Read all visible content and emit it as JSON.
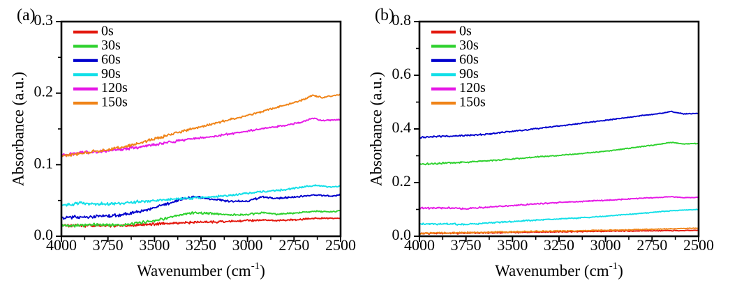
{
  "figure": {
    "background": "#ffffff"
  },
  "chart_data": [
    {
      "type": "line",
      "panel_label": "(a)",
      "ylabel": "Absorbance (a.u.)",
      "xlabel_base": "Wavenumber (cm",
      "xlabel_sup": "-1",
      "xlabel_end": ")",
      "x_axis": {
        "min": 2500,
        "max": 4000,
        "reversed": true,
        "major_ticks": [
          4000,
          3750,
          3500,
          3250,
          3000,
          2750,
          2500
        ],
        "tick_labels": [
          "4000",
          "3750",
          "3500",
          "3250",
          "3000",
          "2750",
          "2500"
        ],
        "minor_ticks": [
          3875,
          3625,
          3375,
          3125,
          2875,
          2625
        ],
        "grid": false
      },
      "y_axis": {
        "min": 0.0,
        "max": 0.3,
        "major_ticks": [
          0.0,
          0.1,
          0.2,
          0.3
        ],
        "tick_labels": [
          "0.0",
          "0.1",
          "0.2",
          "0.3"
        ],
        "minor_ticks": [
          0.05,
          0.15,
          0.25
        ],
        "grid": false
      },
      "legend": {
        "position": "top-left",
        "entries": [
          {
            "label": "0s",
            "color": "#e3170d"
          },
          {
            "label": "30s",
            "color": "#2ed12e"
          },
          {
            "label": "60s",
            "color": "#0000cd"
          },
          {
            "label": "90s",
            "color": "#12dfe8"
          },
          {
            "label": "120s",
            "color": "#e619e6"
          },
          {
            "label": "150s",
            "color": "#f08418"
          }
        ]
      },
      "series": [
        {
          "name": "0s",
          "color": "#e3170d",
          "points": [
            [
              4000,
              0.015
            ],
            [
              3800,
              0.015
            ],
            [
              3650,
              0.015
            ],
            [
              3500,
              0.017
            ],
            [
              3350,
              0.019
            ],
            [
              3200,
              0.02
            ],
            [
              3050,
              0.021
            ],
            [
              2920,
              0.023
            ],
            [
              2850,
              0.022
            ],
            [
              2750,
              0.023
            ],
            [
              2650,
              0.025
            ],
            [
              2500,
              0.025
            ]
          ]
        },
        {
          "name": "30s",
          "color": "#2ed12e",
          "points": [
            [
              4000,
              0.015
            ],
            [
              3800,
              0.016
            ],
            [
              3650,
              0.016
            ],
            [
              3500,
              0.022
            ],
            [
              3400,
              0.027
            ],
            [
              3300,
              0.033
            ],
            [
              3200,
              0.032
            ],
            [
              3100,
              0.03
            ],
            [
              3000,
              0.03
            ],
            [
              2920,
              0.033
            ],
            [
              2850,
              0.031
            ],
            [
              2750,
              0.032
            ],
            [
              2650,
              0.035
            ],
            [
              2550,
              0.034
            ],
            [
              2500,
              0.036
            ]
          ]
        },
        {
          "name": "60s",
          "color": "#0000cd",
          "points": [
            [
              4000,
              0.026
            ],
            [
              3900,
              0.027
            ],
            [
              3800,
              0.028
            ],
            [
              3700,
              0.029
            ],
            [
              3650,
              0.031
            ],
            [
              3550,
              0.036
            ],
            [
              3450,
              0.044
            ],
            [
              3350,
              0.052
            ],
            [
              3280,
              0.055
            ],
            [
              3200,
              0.052
            ],
            [
              3100,
              0.049
            ],
            [
              3000,
              0.049
            ],
            [
              2920,
              0.055
            ],
            [
              2850,
              0.053
            ],
            [
              2780,
              0.054
            ],
            [
              2700,
              0.056
            ],
            [
              2650,
              0.058
            ],
            [
              2550,
              0.056
            ],
            [
              2500,
              0.058
            ]
          ]
        },
        {
          "name": "90s",
          "color": "#12dfe8",
          "points": [
            [
              4000,
              0.043
            ],
            [
              3900,
              0.046
            ],
            [
              3800,
              0.045
            ],
            [
              3700,
              0.046
            ],
            [
              3600,
              0.048
            ],
            [
              3500,
              0.05
            ],
            [
              3400,
              0.052
            ],
            [
              3300,
              0.053
            ],
            [
              3200,
              0.055
            ],
            [
              3100,
              0.057
            ],
            [
              3000,
              0.06
            ],
            [
              2900,
              0.063
            ],
            [
              2800,
              0.065
            ],
            [
              2700,
              0.069
            ],
            [
              2650,
              0.071
            ],
            [
              2550,
              0.069
            ],
            [
              2500,
              0.07
            ]
          ]
        },
        {
          "name": "120s",
          "color": "#e619e6",
          "points": [
            [
              4000,
              0.113
            ],
            [
              3900,
              0.117
            ],
            [
              3800,
              0.118
            ],
            [
              3700,
              0.121
            ],
            [
              3600,
              0.124
            ],
            [
              3500,
              0.128
            ],
            [
              3400,
              0.132
            ],
            [
              3300,
              0.136
            ],
            [
              3200,
              0.139
            ],
            [
              3100,
              0.143
            ],
            [
              3000,
              0.147
            ],
            [
              2900,
              0.151
            ],
            [
              2800,
              0.155
            ],
            [
              2700,
              0.16
            ],
            [
              2650,
              0.165
            ],
            [
              2600,
              0.162
            ],
            [
              2500,
              0.163
            ]
          ]
        },
        {
          "name": "150s",
          "color": "#f08418",
          "points": [
            [
              4000,
              0.112
            ],
            [
              3900,
              0.116
            ],
            [
              3800,
              0.119
            ],
            [
              3700,
              0.123
            ],
            [
              3600,
              0.129
            ],
            [
              3500,
              0.136
            ],
            [
              3400,
              0.143
            ],
            [
              3300,
              0.15
            ],
            [
              3200,
              0.156
            ],
            [
              3100,
              0.163
            ],
            [
              3000,
              0.169
            ],
            [
              2900,
              0.176
            ],
            [
              2800,
              0.183
            ],
            [
              2700,
              0.191
            ],
            [
              2650,
              0.197
            ],
            [
              2600,
              0.194
            ],
            [
              2500,
              0.198
            ]
          ]
        }
      ]
    },
    {
      "type": "line",
      "panel_label": "(b)",
      "ylabel": "Absorbance (a.u.)",
      "xlabel_base": "Wavenumber (cm",
      "xlabel_sup": "-1",
      "xlabel_end": ")",
      "x_axis": {
        "min": 2500,
        "max": 4000,
        "reversed": true,
        "major_ticks": [
          4000,
          3750,
          3500,
          3250,
          3000,
          2750,
          2500
        ],
        "tick_labels": [
          "4000",
          "3750",
          "3500",
          "3250",
          "3000",
          "2750",
          "2500"
        ],
        "minor_ticks": [
          3875,
          3625,
          3375,
          3125,
          2875,
          2625
        ],
        "grid": false
      },
      "y_axis": {
        "min": 0.0,
        "max": 0.8,
        "major_ticks": [
          0.0,
          0.2,
          0.4,
          0.6,
          0.8
        ],
        "tick_labels": [
          "0.0",
          "0.2",
          "0.4",
          "0.6",
          "0.8"
        ],
        "minor_ticks": [
          0.1,
          0.3,
          0.5,
          0.7
        ],
        "grid": false
      },
      "legend": {
        "position": "top-left",
        "entries": [
          {
            "label": "0s",
            "color": "#e3170d"
          },
          {
            "label": "30s",
            "color": "#2ed12e"
          },
          {
            "label": "60s",
            "color": "#0000cd"
          },
          {
            "label": "90s",
            "color": "#12dfe8"
          },
          {
            "label": "120s",
            "color": "#e619e6"
          },
          {
            "label": "150s",
            "color": "#f08418"
          }
        ]
      },
      "series": [
        {
          "name": "0s",
          "color": "#e3170d",
          "points": [
            [
              4000,
              0.01
            ],
            [
              3700,
              0.012
            ],
            [
              3400,
              0.015
            ],
            [
              3100,
              0.018
            ],
            [
              2800,
              0.02
            ],
            [
              2500,
              0.022
            ]
          ]
        },
        {
          "name": "30s",
          "color": "#2ed12e",
          "points": [
            [
              4000,
              0.268
            ],
            [
              3850,
              0.273
            ],
            [
              3750,
              0.276
            ],
            [
              3600,
              0.283
            ],
            [
              3450,
              0.291
            ],
            [
              3300,
              0.299
            ],
            [
              3150,
              0.307
            ],
            [
              3000,
              0.317
            ],
            [
              2850,
              0.33
            ],
            [
              2700,
              0.344
            ],
            [
              2650,
              0.35
            ],
            [
              2580,
              0.344
            ],
            [
              2500,
              0.346
            ]
          ]
        },
        {
          "name": "60s",
          "color": "#0000cd",
          "points": [
            [
              4000,
              0.368
            ],
            [
              3900,
              0.372
            ],
            [
              3800,
              0.373
            ],
            [
              3760,
              0.376
            ],
            [
              3700,
              0.377
            ],
            [
              3600,
              0.383
            ],
            [
              3500,
              0.391
            ],
            [
              3400,
              0.399
            ],
            [
              3300,
              0.407
            ],
            [
              3200,
              0.415
            ],
            [
              3100,
              0.424
            ],
            [
              3000,
              0.432
            ],
            [
              2900,
              0.441
            ],
            [
              2800,
              0.45
            ],
            [
              2700,
              0.458
            ],
            [
              2650,
              0.465
            ],
            [
              2580,
              0.456
            ],
            [
              2500,
              0.458
            ]
          ]
        },
        {
          "name": "90s",
          "color": "#12dfe8",
          "points": [
            [
              4000,
              0.046
            ],
            [
              3850,
              0.046
            ],
            [
              3750,
              0.044
            ],
            [
              3600,
              0.051
            ],
            [
              3450,
              0.057
            ],
            [
              3300,
              0.063
            ],
            [
              3150,
              0.068
            ],
            [
              3000,
              0.075
            ],
            [
              2850,
              0.083
            ],
            [
              2700,
              0.092
            ],
            [
              2600,
              0.097
            ],
            [
              2500,
              0.1
            ]
          ]
        },
        {
          "name": "120s",
          "color": "#e619e6",
          "points": [
            [
              4000,
              0.105
            ],
            [
              3850,
              0.105
            ],
            [
              3750,
              0.103
            ],
            [
              3600,
              0.11
            ],
            [
              3450,
              0.117
            ],
            [
              3300,
              0.124
            ],
            [
              3150,
              0.129
            ],
            [
              3000,
              0.134
            ],
            [
              2850,
              0.14
            ],
            [
              2700,
              0.145
            ],
            [
              2650,
              0.148
            ],
            [
              2580,
              0.144
            ],
            [
              2500,
              0.145
            ]
          ]
        },
        {
          "name": "150s",
          "color": "#f08418",
          "points": [
            [
              4000,
              0.011
            ],
            [
              3700,
              0.014
            ],
            [
              3400,
              0.018
            ],
            [
              3100,
              0.021
            ],
            [
              2800,
              0.025
            ],
            [
              2650,
              0.028
            ],
            [
              2500,
              0.03
            ]
          ]
        }
      ]
    }
  ]
}
